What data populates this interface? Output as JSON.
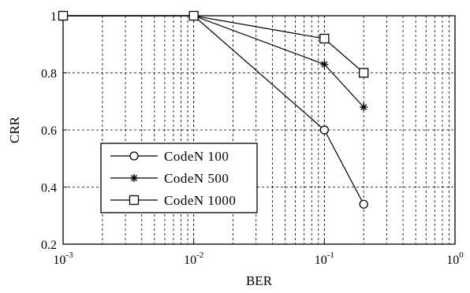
{
  "chart_data": {
    "type": "line",
    "xscale": "log",
    "xlabel": "BER",
    "ylabel": "CRR",
    "xlim": [
      0.001,
      1
    ],
    "ylim": [
      0.2,
      1
    ],
    "grid": true,
    "legend_position": "lower-left",
    "xticks": [
      {
        "value": 0.001,
        "base": "10",
        "exp": "-3"
      },
      {
        "value": 0.01,
        "base": "10",
        "exp": "-2"
      },
      {
        "value": 0.1,
        "base": "10",
        "exp": "-1"
      },
      {
        "value": 1,
        "base": "10",
        "exp": "0"
      }
    ],
    "yticks": [
      {
        "value": 0.2,
        "label": "0.2"
      },
      {
        "value": 0.4,
        "label": "0.4"
      },
      {
        "value": 0.6,
        "label": "0.6"
      },
      {
        "value": 0.8,
        "label": "0.8"
      },
      {
        "value": 1,
        "label": "1"
      }
    ],
    "series": [
      {
        "name": "CodeN 100",
        "marker": "circle",
        "x": [
          0.001,
          0.01,
          0.1,
          0.2
        ],
        "y": [
          1.0,
          1.0,
          0.6,
          0.34
        ]
      },
      {
        "name": "CodeN 500",
        "marker": "star",
        "x": [
          0.001,
          0.01,
          0.1,
          0.2
        ],
        "y": [
          1.0,
          1.0,
          0.83,
          0.68
        ]
      },
      {
        "name": "CodeN 1000",
        "marker": "square",
        "x": [
          0.001,
          0.01,
          0.1,
          0.2
        ],
        "y": [
          1.0,
          1.0,
          0.92,
          0.8
        ]
      }
    ]
  }
}
